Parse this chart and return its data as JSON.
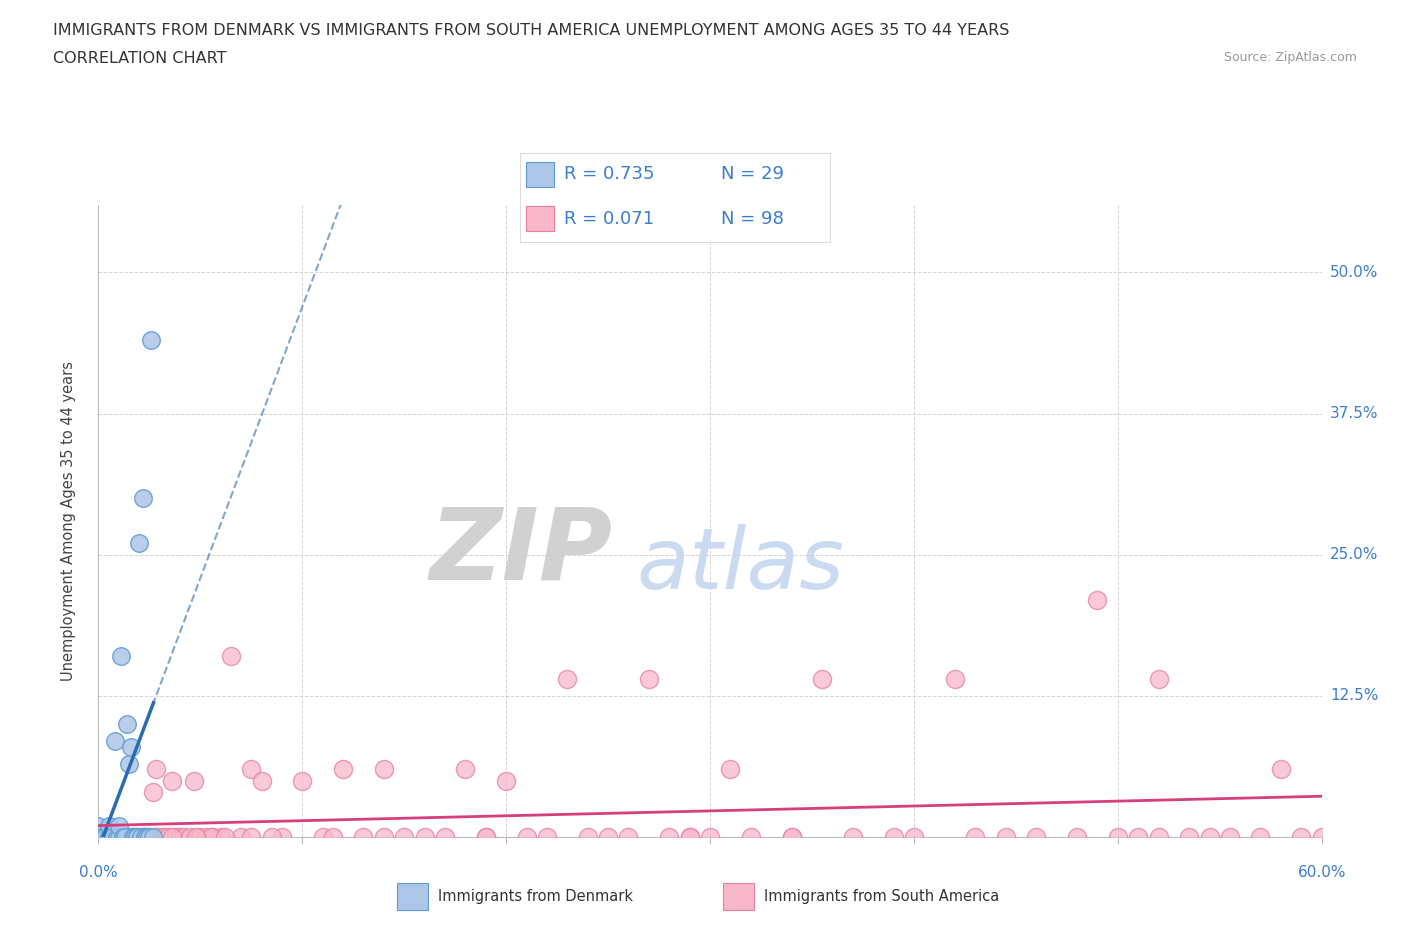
{
  "title_line1": "IMMIGRANTS FROM DENMARK VS IMMIGRANTS FROM SOUTH AMERICA UNEMPLOYMENT AMONG AGES 35 TO 44 YEARS",
  "title_line2": "CORRELATION CHART",
  "source_text": "Source: ZipAtlas.com",
  "ylabel": "Unemployment Among Ages 35 to 44 years",
  "yticks": [
    0.0,
    0.125,
    0.25,
    0.375,
    0.5
  ],
  "ytick_labels": [
    "",
    "12.5%",
    "25.0%",
    "37.5%",
    "50.0%"
  ],
  "xlim": [
    0.0,
    0.6
  ],
  "ylim": [
    0.0,
    0.56
  ],
  "legend_blue_r": "R = 0.735",
  "legend_blue_n": "N = 29",
  "legend_pink_r": "R = 0.071",
  "legend_pink_n": "N = 98",
  "legend_label_blue": "Immigrants from Denmark",
  "legend_label_pink": "Immigrants from South America",
  "blue_color": "#aec6e8",
  "pink_color": "#f9b8ca",
  "blue_edge_color": "#5b9bd5",
  "pink_edge_color": "#e87fa0",
  "blue_line_color": "#2b6cb0",
  "pink_line_color": "#d63f79",
  "watermark_zip": "ZIP",
  "watermark_atlas": "atlas",
  "watermark_zip_color": "#cccccc",
  "watermark_atlas_color": "#c5d8f0",
  "background_color": "#ffffff",
  "title_fontsize": 11.5,
  "axis_label_fontsize": 10.5,
  "tick_fontsize": 11,
  "legend_fontsize": 13,
  "blue_scatter_x": [
    0.0,
    0.0,
    0.0,
    0.002,
    0.003,
    0.005,
    0.005,
    0.007,
    0.008,
    0.009,
    0.01,
    0.01,
    0.011,
    0.012,
    0.013,
    0.014,
    0.015,
    0.016,
    0.017,
    0.018,
    0.019,
    0.02,
    0.021,
    0.022,
    0.023,
    0.024,
    0.025,
    0.026,
    0.027
  ],
  "blue_scatter_y": [
    0.0,
    0.0,
    0.01,
    0.0,
    0.0,
    0.0,
    0.01,
    0.0,
    0.085,
    0.0,
    0.0,
    0.01,
    0.16,
    0.0,
    0.0,
    0.1,
    0.065,
    0.08,
    0.0,
    0.0,
    0.0,
    0.26,
    0.0,
    0.3,
    0.0,
    0.0,
    0.0,
    0.44,
    0.0
  ],
  "pink_scatter_x": [
    0.003,
    0.004,
    0.005,
    0.006,
    0.007,
    0.008,
    0.009,
    0.01,
    0.012,
    0.013,
    0.015,
    0.016,
    0.017,
    0.018,
    0.019,
    0.02,
    0.022,
    0.023,
    0.024,
    0.025,
    0.027,
    0.028,
    0.03,
    0.032,
    0.034,
    0.036,
    0.038,
    0.04,
    0.042,
    0.045,
    0.047,
    0.05,
    0.053,
    0.056,
    0.06,
    0.065,
    0.07,
    0.075,
    0.08,
    0.09,
    0.1,
    0.11,
    0.115,
    0.12,
    0.13,
    0.14,
    0.15,
    0.16,
    0.17,
    0.18,
    0.19,
    0.2,
    0.21,
    0.22,
    0.23,
    0.24,
    0.25,
    0.26,
    0.27,
    0.28,
    0.29,
    0.3,
    0.31,
    0.32,
    0.34,
    0.355,
    0.37,
    0.39,
    0.4,
    0.42,
    0.43,
    0.445,
    0.46,
    0.48,
    0.49,
    0.5,
    0.51,
    0.52,
    0.535,
    0.545,
    0.555,
    0.57,
    0.58,
    0.59,
    0.6,
    0.52,
    0.34,
    0.14,
    0.29,
    0.19,
    0.055,
    0.075,
    0.022,
    0.028,
    0.036,
    0.048,
    0.062,
    0.085
  ],
  "pink_scatter_y": [
    0.0,
    0.0,
    0.0,
    0.0,
    0.0,
    0.0,
    0.0,
    0.0,
    0.0,
    0.0,
    0.0,
    0.0,
    0.0,
    0.0,
    0.0,
    0.0,
    0.0,
    0.0,
    0.0,
    0.0,
    0.04,
    0.0,
    0.0,
    0.0,
    0.0,
    0.05,
    0.0,
    0.0,
    0.0,
    0.0,
    0.05,
    0.0,
    0.0,
    0.0,
    0.0,
    0.16,
    0.0,
    0.06,
    0.05,
    0.0,
    0.05,
    0.0,
    0.0,
    0.06,
    0.0,
    0.06,
    0.0,
    0.0,
    0.0,
    0.06,
    0.0,
    0.05,
    0.0,
    0.0,
    0.14,
    0.0,
    0.0,
    0.0,
    0.14,
    0.0,
    0.0,
    0.0,
    0.06,
    0.0,
    0.0,
    0.14,
    0.0,
    0.0,
    0.0,
    0.14,
    0.0,
    0.0,
    0.0,
    0.0,
    0.21,
    0.0,
    0.0,
    0.0,
    0.0,
    0.0,
    0.0,
    0.0,
    0.06,
    0.0,
    0.0,
    0.14,
    0.0,
    0.0,
    0.0,
    0.0,
    0.0,
    0.0,
    0.0,
    0.06,
    0.0,
    0.0,
    0.0,
    0.0
  ]
}
